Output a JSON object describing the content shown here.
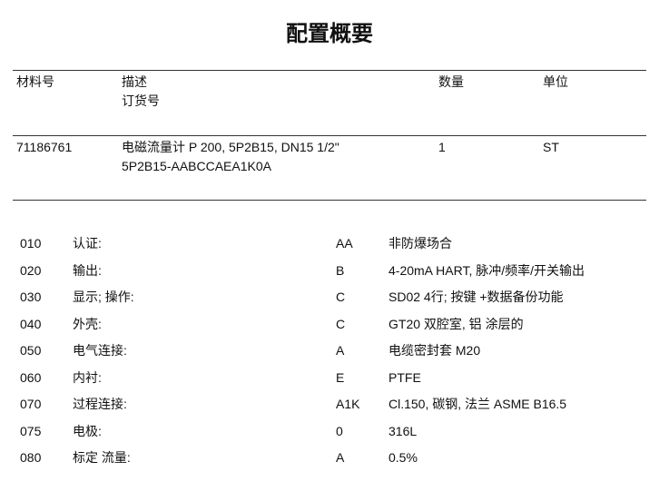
{
  "title": "配置概要",
  "header": {
    "material_no": "材料号",
    "description": "描述",
    "order_code": "订货号",
    "quantity": "数量",
    "unit": "单位"
  },
  "item": {
    "material_no": "71186761",
    "description": "电磁流量计 P 200, 5P2B15, DN15 1/2\"",
    "order_code": "5P2B15-AABCCAEA1K0A",
    "quantity": "1",
    "unit": "ST"
  },
  "options": [
    {
      "pos": "010",
      "feature": "认证:",
      "code": "AA",
      "value": "非防爆场合"
    },
    {
      "pos": "020",
      "feature": "输出:",
      "code": "B",
      "value": "4-20mA HART, 脉冲/频率/开关输出"
    },
    {
      "pos": "030",
      "feature": "显示; 操作:",
      "code": "C",
      "value": "SD02 4行; 按键 +数据备份功能"
    },
    {
      "pos": "040",
      "feature": "外壳:",
      "code": "C",
      "value": "GT20 双腔室, 铝 涂层的"
    },
    {
      "pos": "050",
      "feature": "电气连接:",
      "code": "A",
      "value": "电缆密封套 M20"
    },
    {
      "pos": "060",
      "feature": "内衬:",
      "code": "E",
      "value": "PTFE"
    },
    {
      "pos": "070",
      "feature": "过程连接:",
      "code": "A1K",
      "value": "Cl.150, 碳钢, 法兰 ASME B16.5"
    },
    {
      "pos": "075",
      "feature": "电极:",
      "code": "0",
      "value": "316L"
    },
    {
      "pos": "080",
      "feature": "标定 流量:",
      "code": "A",
      "value": "0.5%"
    }
  ]
}
